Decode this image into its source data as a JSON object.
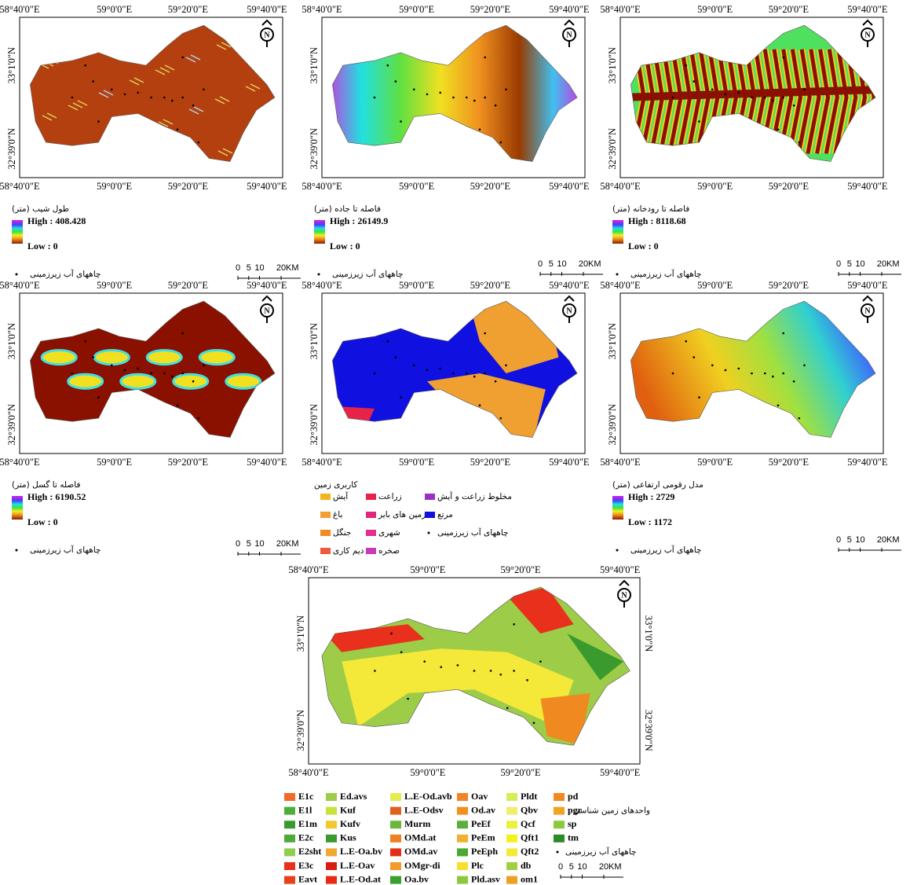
{
  "grid_labels": {
    "x": [
      "58°40'0\"E",
      "59°0'0\"E",
      "59°20'0\"E",
      "59°40'0\"E"
    ],
    "y": [
      "33°1'0\"N",
      "32°39'0\"N"
    ]
  },
  "north": "N",
  "wells_label": "چاههای آب زیرزمینی",
  "scale_bar": {
    "ticks": [
      0,
      5,
      10,
      20
    ],
    "unit": "KM"
  },
  "panels": [
    {
      "title": "طول شیب (متر)",
      "high": "High : 408.428",
      "low": "Low : 0"
    },
    {
      "title": "فاصله تا جاده (متر)",
      "high": "High : 26149.9",
      "low": "Low : 0"
    },
    {
      "title": "فاصله تا رودخانه (متر)",
      "high": "High : 8118.68",
      "low": "Low : 0"
    },
    {
      "title": "فاصله تا گسل (متر)",
      "high": "High : 6190.52",
      "low": "Low : 0"
    },
    {
      "title": "کاربری زمین",
      "items": [
        {
          "label": "آیش",
          "color": "#f2b51c"
        },
        {
          "label": "باغ",
          "color": "#f0a030"
        },
        {
          "label": "جنگل",
          "color": "#f08a24"
        },
        {
          "label": "دیم کاری",
          "color": "#ef5b3a"
        },
        {
          "label": "زراعت",
          "color": "#e8234a"
        },
        {
          "label": "زمین های بایر",
          "color": "#e0287a"
        },
        {
          "label": "شهری",
          "color": "#e0308e"
        },
        {
          "label": "صخره",
          "color": "#c93ab8"
        },
        {
          "label": "مخلوط زراعت و آیش",
          "color": "#9b30c8"
        },
        {
          "label": "مرتع",
          "color": "#1010e0"
        }
      ]
    },
    {
      "title": "مدل رقومی ارتفاعی (متر)",
      "high": "High : 2729",
      "low": "Low : 1172"
    }
  ],
  "geology": {
    "title": "واحدهای زمین شناسی",
    "items": [
      {
        "label": "E1c",
        "color": "#f06a2a"
      },
      {
        "label": "E1l",
        "color": "#4caf3a"
      },
      {
        "label": "E1m",
        "color": "#3a9a2e"
      },
      {
        "label": "E2c",
        "color": "#4faa3c"
      },
      {
        "label": "E2sht",
        "color": "#8fcf50"
      },
      {
        "label": "E3c",
        "color": "#e8301c"
      },
      {
        "label": "Eavt",
        "color": "#e8401c"
      },
      {
        "label": "Ed.avs",
        "color": "#9ccc48"
      },
      {
        "label": "Kuf",
        "color": "#c8e040"
      },
      {
        "label": "Kufv",
        "color": "#f2c830"
      },
      {
        "label": "Kus",
        "color": "#3a9a2e"
      },
      {
        "label": "L.E-Oa.bv",
        "color": "#f0a830"
      },
      {
        "label": "L.E-Oav",
        "color": "#d81c10"
      },
      {
        "label": "L.E-Od.at",
        "color": "#e82a14"
      },
      {
        "label": "L.E-Od.avb",
        "color": "#e6ec50"
      },
      {
        "label": "L.E-Odsv",
        "color": "#e0601e"
      },
      {
        "label": "Murm",
        "color": "#6ab83a"
      },
      {
        "label": "OMd.at",
        "color": "#f08024"
      },
      {
        "label": "OMd.av",
        "color": "#e23018"
      },
      {
        "label": "OMgr-di",
        "color": "#f29a2a"
      },
      {
        "label": "Oa.bv",
        "color": "#3aa02e"
      },
      {
        "label": "Oav",
        "color": "#f08428"
      },
      {
        "label": "Od.av",
        "color": "#f0901e"
      },
      {
        "label": "PeEf",
        "color": "#5ab03a"
      },
      {
        "label": "PeEm",
        "color": "#f2b030"
      },
      {
        "label": "PeEph",
        "color": "#4aa834"
      },
      {
        "label": "Plc",
        "color": "#f6e030"
      },
      {
        "label": "Pld.asv",
        "color": "#8cc83c"
      },
      {
        "label": "Pldt",
        "color": "#d8ec5a"
      },
      {
        "label": "Qbv",
        "color": "#f2ec70"
      },
      {
        "label": "Qcf",
        "color": "#eef040"
      },
      {
        "label": "Qft1",
        "color": "#f6f020"
      },
      {
        "label": "Qft2",
        "color": "#f4e838"
      },
      {
        "label": "db",
        "color": "#a0d040"
      },
      {
        "label": "om1",
        "color": "#f0a020"
      },
      {
        "label": "pd",
        "color": "#f08a20"
      },
      {
        "label": "pgr",
        "color": "#f0a424"
      },
      {
        "label": "sp",
        "color": "#8cc840"
      },
      {
        "label": "tm",
        "color": "#2e8a26"
      }
    ]
  }
}
